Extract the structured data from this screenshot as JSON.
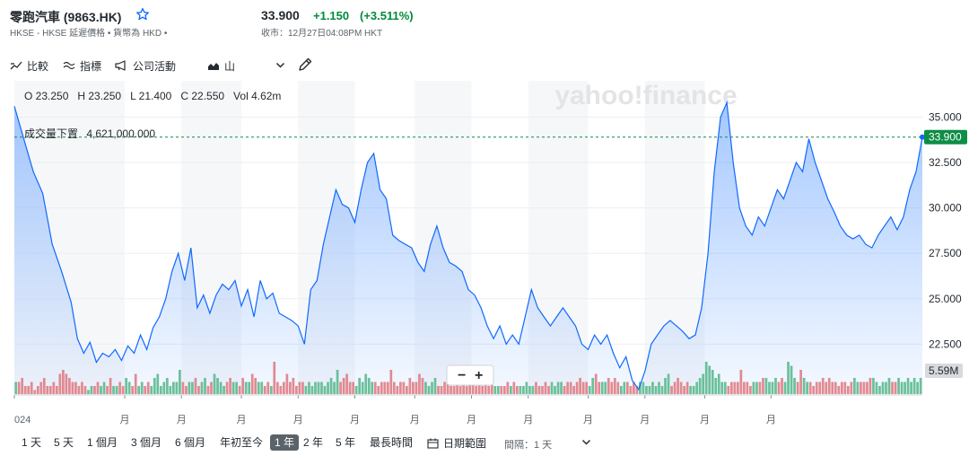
{
  "header": {
    "title": "零跑汽車 (9863.HK)",
    "exchange_info": "HKSE - HKSE 延遲價格 • 貨幣為 HKD •",
    "price": "33.900",
    "change": "+1.150",
    "change_pct": "(+3.511%)",
    "market_time": "收市：12月27日04:08PM HKT"
  },
  "toolbar": {
    "compare": "比較",
    "indicators": "指標",
    "events": "公司活動",
    "chart_type": "山"
  },
  "chart_header": {
    "ohlc": "O 23.250   H 23.250   L 21.400   C 22.550   Vol 4.62m",
    "volume_label": "成交量下置",
    "volume_value": "4,621,000.000"
  },
  "chart_data": {
    "type": "area",
    "watermark": "yahoo!finance",
    "current_price": 33.9,
    "current_price_label": "33.900",
    "volume_last_label": "5.59M",
    "y_ticks": [
      "35.000",
      "32.500",
      "30.000",
      "27.500",
      "25.000",
      "22.500"
    ],
    "y_tick_values": [
      35.0,
      32.5,
      30.0,
      27.5,
      25.0,
      22.5
    ],
    "ylim": [
      19.7,
      37.0
    ],
    "x_tick_labels": [
      "024",
      "月",
      "月",
      "月",
      "月",
      "月",
      "月",
      "月",
      "月",
      "月",
      "月",
      "月",
      "月"
    ],
    "x_tick_positions": [
      0,
      35,
      53,
      72,
      90,
      108,
      127,
      145,
      163,
      182,
      200,
      219,
      240
    ],
    "grid": true,
    "price_series": [
      [
        0,
        35.6
      ],
      [
        3,
        33.8
      ],
      [
        6,
        32.0
      ],
      [
        9,
        30.8
      ],
      [
        12,
        28.0
      ],
      [
        15,
        26.5
      ],
      [
        18,
        24.8
      ],
      [
        20,
        22.8
      ],
      [
        22,
        22.0
      ],
      [
        24,
        22.6
      ],
      [
        26,
        21.5
      ],
      [
        28,
        22.0
      ],
      [
        30,
        21.8
      ],
      [
        32,
        22.2
      ],
      [
        34,
        21.6
      ],
      [
        36,
        22.4
      ],
      [
        38,
        22.0
      ],
      [
        40,
        23.0
      ],
      [
        42,
        22.2
      ],
      [
        44,
        23.4
      ],
      [
        46,
        24.0
      ],
      [
        48,
        25.0
      ],
      [
        50,
        26.5
      ],
      [
        52,
        27.5
      ],
      [
        54,
        26.0
      ],
      [
        56,
        27.8
      ],
      [
        58,
        24.5
      ],
      [
        60,
        25.2
      ],
      [
        62,
        24.2
      ],
      [
        64,
        25.2
      ],
      [
        66,
        25.8
      ],
      [
        68,
        25.5
      ],
      [
        70,
        26.0
      ],
      [
        72,
        24.6
      ],
      [
        74,
        25.5
      ],
      [
        76,
        24.0
      ],
      [
        78,
        26.0
      ],
      [
        80,
        25.0
      ],
      [
        82,
        25.3
      ],
      [
        84,
        24.2
      ],
      [
        86,
        24.0
      ],
      [
        88,
        23.8
      ],
      [
        90,
        23.5
      ],
      [
        92,
        22.5
      ],
      [
        94,
        25.5
      ],
      [
        96,
        26.0
      ],
      [
        98,
        28.0
      ],
      [
        100,
        29.5
      ],
      [
        102,
        31.0
      ],
      [
        104,
        30.2
      ],
      [
        106,
        30.0
      ],
      [
        108,
        29.2
      ],
      [
        110,
        31.0
      ],
      [
        112,
        32.5
      ],
      [
        114,
        33.0
      ],
      [
        116,
        31.0
      ],
      [
        118,
        30.5
      ],
      [
        120,
        28.5
      ],
      [
        122,
        28.2
      ],
      [
        124,
        28.0
      ],
      [
        126,
        27.8
      ],
      [
        128,
        27.0
      ],
      [
        130,
        26.5
      ],
      [
        132,
        28.0
      ],
      [
        134,
        29.0
      ],
      [
        136,
        27.8
      ],
      [
        138,
        27.0
      ],
      [
        140,
        26.8
      ],
      [
        142,
        26.5
      ],
      [
        144,
        25.5
      ],
      [
        146,
        25.2
      ],
      [
        148,
        24.5
      ],
      [
        150,
        23.5
      ],
      [
        152,
        22.8
      ],
      [
        154,
        23.5
      ],
      [
        156,
        22.5
      ],
      [
        158,
        23.0
      ],
      [
        160,
        22.5
      ],
      [
        162,
        24.0
      ],
      [
        164,
        25.5
      ],
      [
        166,
        24.5
      ],
      [
        168,
        24.0
      ],
      [
        170,
        23.5
      ],
      [
        172,
        24.0
      ],
      [
        174,
        24.5
      ],
      [
        176,
        24.0
      ],
      [
        178,
        23.5
      ],
      [
        180,
        22.5
      ],
      [
        182,
        22.2
      ],
      [
        184,
        23.0
      ],
      [
        186,
        22.5
      ],
      [
        188,
        23.0
      ],
      [
        190,
        22.0
      ],
      [
        192,
        21.2
      ],
      [
        194,
        21.8
      ],
      [
        196,
        20.5
      ],
      [
        198,
        20.0
      ],
      [
        200,
        21.0
      ],
      [
        202,
        22.5
      ],
      [
        204,
        23.0
      ],
      [
        206,
        23.5
      ],
      [
        208,
        23.8
      ],
      [
        210,
        23.5
      ],
      [
        212,
        23.2
      ],
      [
        214,
        22.8
      ],
      [
        216,
        23.0
      ],
      [
        218,
        24.5
      ],
      [
        220,
        27.5
      ],
      [
        222,
        32.0
      ],
      [
        224,
        35.0
      ],
      [
        226,
        35.8
      ],
      [
        228,
        32.5
      ],
      [
        230,
        30.0
      ],
      [
        232,
        29.0
      ],
      [
        234,
        28.5
      ],
      [
        236,
        29.5
      ],
      [
        238,
        29.0
      ],
      [
        240,
        30.0
      ],
      [
        242,
        31.0
      ],
      [
        244,
        30.5
      ],
      [
        246,
        31.5
      ],
      [
        248,
        32.5
      ],
      [
        250,
        32.0
      ],
      [
        252,
        33.8
      ],
      [
        254,
        32.5
      ],
      [
        256,
        31.5
      ],
      [
        258,
        30.5
      ],
      [
        260,
        29.8
      ],
      [
        262,
        29.0
      ],
      [
        264,
        28.5
      ],
      [
        266,
        28.3
      ],
      [
        268,
        28.5
      ],
      [
        270,
        28.0
      ],
      [
        272,
        27.8
      ],
      [
        274,
        28.5
      ],
      [
        276,
        29.0
      ],
      [
        278,
        29.5
      ],
      [
        280,
        28.8
      ],
      [
        282,
        29.5
      ],
      [
        284,
        31.0
      ],
      [
        286,
        32.0
      ],
      [
        288,
        33.9
      ]
    ],
    "volume_scale_max": 10,
    "volume_series": [
      3,
      3,
      4,
      2,
      2,
      3,
      1,
      2,
      3,
      4,
      2,
      2,
      3,
      2,
      5,
      6,
      5,
      4,
      3,
      3,
      2,
      3,
      2,
      1,
      2,
      2,
      3,
      2,
      3,
      2,
      4,
      2,
      2,
      3,
      2,
      4,
      3,
      2,
      5,
      2,
      3,
      2,
      3,
      2,
      4,
      5,
      2,
      3,
      4,
      2,
      3,
      3,
      6,
      3,
      2,
      3,
      3,
      4,
      2,
      3,
      4,
      2,
      3,
      5,
      4,
      3,
      2,
      3,
      4,
      3,
      3,
      2,
      4,
      3,
      3,
      5,
      4,
      3,
      3,
      2,
      3,
      2,
      8,
      3,
      2,
      3,
      5,
      3,
      4,
      2,
      3,
      3,
      2,
      3,
      2,
      3,
      3,
      3,
      2,
      3,
      4,
      3,
      6,
      3,
      4,
      5,
      3,
      3,
      2,
      4,
      3,
      5,
      4,
      3,
      3,
      2,
      3,
      3,
      3,
      6,
      3,
      2,
      3,
      3,
      2,
      4,
      3,
      3,
      5,
      4,
      3,
      2,
      3,
      4,
      2,
      2,
      3,
      3,
      2,
      2,
      3,
      2,
      3,
      2,
      3,
      3,
      2,
      3,
      2,
      3,
      2,
      3,
      2,
      2,
      2,
      2,
      3,
      2,
      3,
      2,
      2,
      2,
      3,
      2,
      2,
      3,
      2,
      2,
      3,
      2,
      3,
      2,
      3,
      3,
      2,
      3,
      3,
      2,
      3,
      4,
      3,
      3,
      2,
      4,
      5,
      3,
      3,
      3,
      4,
      3,
      4,
      3,
      2,
      3,
      3,
      2,
      3,
      2,
      3,
      3,
      2,
      2,
      3,
      2,
      3,
      2,
      4,
      5,
      2,
      3,
      4,
      3,
      2,
      3,
      2,
      2,
      3,
      4,
      5,
      8,
      7,
      6,
      4,
      5,
      3,
      3,
      2,
      3,
      3,
      3,
      6,
      3,
      3,
      2,
      3,
      3,
      3,
      4,
      4,
      3,
      3,
      4,
      3,
      4,
      3,
      8,
      7,
      4,
      3,
      6,
      4,
      3,
      3,
      2,
      3,
      3,
      4,
      3,
      4,
      3,
      3,
      2,
      3,
      3,
      2,
      3,
      4,
      3,
      3,
      3,
      3,
      4,
      4,
      3,
      2,
      3,
      3,
      4,
      3,
      3,
      4,
      3,
      3,
      4,
      3,
      4,
      3,
      4
    ]
  },
  "range_bar": {
    "ranges": [
      "1 天",
      "5 天",
      "1 個月",
      "3 個月",
      "6 個月",
      "年初至今",
      "1 年",
      "2 年",
      "5 年",
      "最長時間"
    ],
    "active_index": 6,
    "date_range": "日期範圍",
    "interval": "間隔：1 天"
  },
  "colors": {
    "up": "#008a3b",
    "line": "#0f69ff",
    "vol_up": "#5cbd86",
    "vol_down": "#eb7b7b",
    "price_badge": "#0e8d45"
  }
}
